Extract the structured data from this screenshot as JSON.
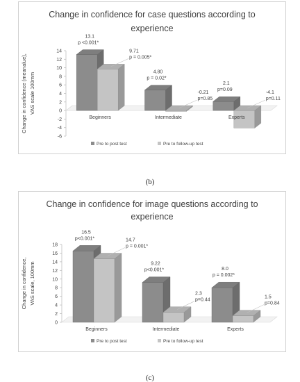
{
  "chart_data": [
    {
      "type": "bar",
      "title": "Change in confidence for case questions according to experience",
      "title_lines": [
        "Change in confidence for case questions according to",
        "experience"
      ],
      "ylabel": "Change in confidence (meanalue), VAS scale 100mm",
      "ylabel_lines": [
        "Change in confidence (meanalue),",
        "VAS scale 100mm"
      ],
      "categories": [
        "Beginners",
        "Intermediate",
        "Experts"
      ],
      "ylim": [
        -6,
        14
      ],
      "yticks": [
        -6,
        -4,
        -2,
        0,
        2,
        4,
        6,
        8,
        10,
        12,
        14
      ],
      "grid": false,
      "legend_position": "bottom",
      "series": [
        {
          "name": "Pre to post test",
          "color": "#8c8c8c",
          "values": [
            13.1,
            4.8,
            2.1
          ],
          "value_labels": [
            "13.1",
            "4.80",
            "2.1"
          ],
          "p_labels": [
            "p <0.001*",
            "p = 0.02*",
            "p=0.09"
          ]
        },
        {
          "name": "Pre to follow-up test",
          "color": "#c4c4c4",
          "values": [
            9.71,
            -0.21,
            -4.1
          ],
          "value_labels": [
            "9.71",
            "-0.21",
            "-4.1"
          ],
          "p_labels": [
            "p = 0.005*",
            "p=0.85",
            "p=0.11"
          ]
        }
      ]
    },
    {
      "type": "bar",
      "title": "Change in confidence for image questions according to experience",
      "title_lines": [
        "Change in confidence for image questions according to",
        "experience"
      ],
      "ylabel": "Change in confidence, VAS scale, 100mm",
      "ylabel_lines": [
        "Change in confidence,",
        "VAS scale, 100mm"
      ],
      "categories": [
        "Beginners",
        "Intermediate",
        "Experts"
      ],
      "ylim": [
        0,
        18
      ],
      "yticks": [
        0,
        2,
        4,
        6,
        8,
        10,
        12,
        14,
        16,
        18
      ],
      "grid": false,
      "legend_position": "bottom",
      "series": [
        {
          "name": "Pre to post test",
          "color": "#8c8c8c",
          "values": [
            16.5,
            9.22,
            8.0
          ],
          "value_labels": [
            "16.5",
            "9.22",
            "8.0"
          ],
          "p_labels": [
            "p<0.001*",
            "p<0.001*",
            "p = 0.002*"
          ]
        },
        {
          "name": "Pre to follow-up test",
          "color": "#c4c4c4",
          "values": [
            14.7,
            2.3,
            1.5
          ],
          "value_labels": [
            "14.7",
            "2.3",
            "1.5"
          ],
          "p_labels": [
            "p = 0.001*",
            "p=0.44",
            "p=0.84"
          ]
        }
      ]
    }
  ],
  "panel_labels": [
    "(b)",
    "(c)"
  ]
}
